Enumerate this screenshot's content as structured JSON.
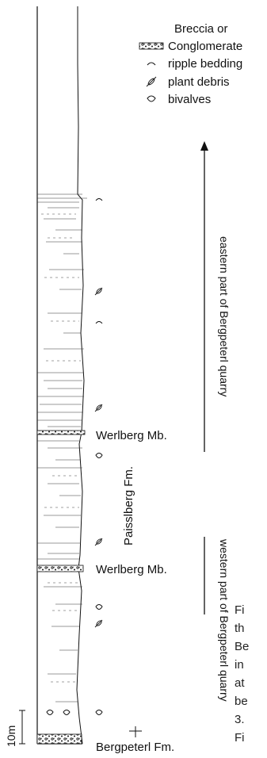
{
  "legend": {
    "breccia_line1": "Breccia or",
    "breccia_line2": "Conglomerate",
    "ripple": "ripple bedding",
    "plant": "plant debris",
    "bivalves": "bivalves"
  },
  "arrows": {
    "eastern": "eastern part of Bergpeterl quarry",
    "western": "western part of Bergpeterl quarry"
  },
  "units": {
    "werlberg_upper": "Werlberg Mb.",
    "werlberg_lower": "Werlberg Mb.",
    "paisslberg": "Paisslberg Fm.",
    "bergpeterl": "Bergpeterl Fm."
  },
  "scale_bar": "10m",
  "caption_fragment": [
    "Fi",
    "th",
    "Be",
    "in",
    "at",
    "be",
    "3.",
    "Fi"
  ],
  "colors": {
    "ink": "#111111",
    "conglomerate_fill": "#9a9a9a"
  },
  "symbols": [
    "conglomerate-pattern",
    "ripple-icon",
    "plant-debris-icon",
    "bivalve-icon",
    "arrow-up"
  ]
}
